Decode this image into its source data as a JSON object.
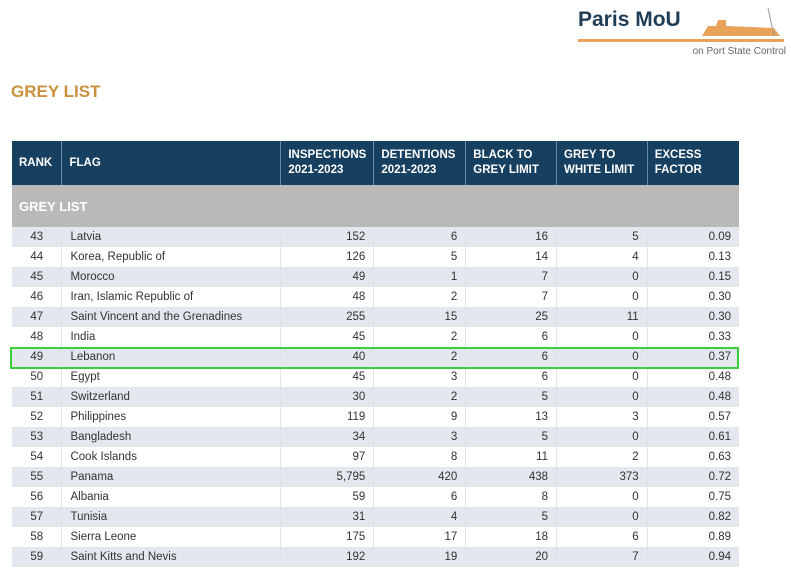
{
  "logo": {
    "name": "Paris MoU",
    "subtitle": "on Port State Control"
  },
  "title": "GREY LIST",
  "headers": {
    "rank": "RANK",
    "flag": "FLAG",
    "inspections": [
      "INSPECTIONS",
      "2021-2023"
    ],
    "detentions": [
      "DETENTIONS",
      "2021-2023"
    ],
    "black_to_grey": [
      "BLACK TO",
      "GREY LIMIT"
    ],
    "grey_to_white": [
      "GREY TO",
      "WHITE LIMIT"
    ],
    "excess": [
      "EXCESS",
      "FACTOR"
    ]
  },
  "band_label": "GREY LIST",
  "highlight_color": "#3ccf3c",
  "rows": [
    [
      "43",
      "Latvia",
      "152",
      "6",
      "16",
      "5",
      "0.09"
    ],
    [
      "44",
      "Korea, Republic of",
      "126",
      "5",
      "14",
      "4",
      "0.13"
    ],
    [
      "45",
      "Morocco",
      "49",
      "1",
      "7",
      "0",
      "0.15"
    ],
    [
      "46",
      "Iran, Islamic Republic of",
      "48",
      "2",
      "7",
      "0",
      "0.30"
    ],
    [
      "47",
      "Saint Vincent and the Grenadines",
      "255",
      "15",
      "25",
      "11",
      "0.30"
    ],
    [
      "48",
      "India",
      "45",
      "2",
      "6",
      "0",
      "0.33"
    ],
    [
      "49",
      "Lebanon",
      "40",
      "2",
      "6",
      "0",
      "0.37"
    ],
    [
      "50",
      "Egypt",
      "45",
      "3",
      "6",
      "0",
      "0.48"
    ],
    [
      "51",
      "Switzerland",
      "30",
      "2",
      "5",
      "0",
      "0.48"
    ],
    [
      "52",
      "Philippines",
      "119",
      "9",
      "13",
      "3",
      "0.57"
    ],
    [
      "53",
      "Bangladesh",
      "34",
      "3",
      "5",
      "0",
      "0.61"
    ],
    [
      "54",
      "Cook Islands",
      "97",
      "8",
      "11",
      "2",
      "0.63"
    ],
    [
      "55",
      "Panama",
      "5,795",
      "420",
      "438",
      "373",
      "0.72"
    ],
    [
      "56",
      "Albania",
      "59",
      "6",
      "8",
      "0",
      "0.75"
    ],
    [
      "57",
      "Tunisia",
      "31",
      "4",
      "5",
      "0",
      "0.82"
    ],
    [
      "58",
      "Sierra Leone",
      "175",
      "17",
      "18",
      "6",
      "0.89"
    ],
    [
      "59",
      "Saint Kitts and Nevis",
      "192",
      "19",
      "20",
      "7",
      "0.94"
    ]
  ]
}
